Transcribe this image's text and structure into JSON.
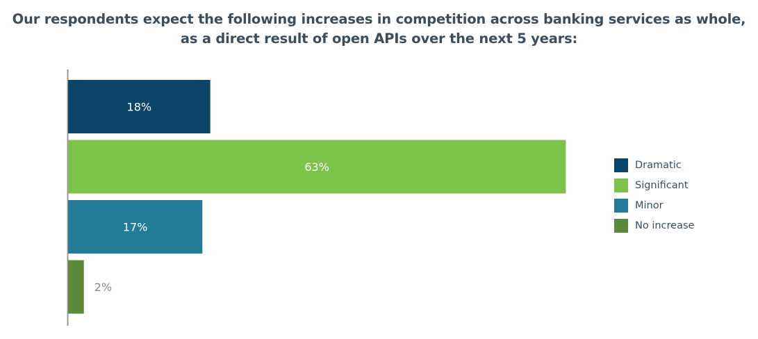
{
  "chart_data": {
    "type": "bar",
    "orientation": "horizontal",
    "title": [
      "Our respondents expect the following increases in competition across banking services as whole,",
      "as a direct result of open APIs over the next 5 years:"
    ],
    "categories": [
      "Dramatic",
      "Significant",
      "Minor",
      "No increase"
    ],
    "values": [
      18,
      63,
      17,
      2
    ],
    "labels": [
      "18%",
      "63%",
      "17%",
      "2%"
    ],
    "colors": [
      "#0b4567",
      "#7dc24b",
      "#237b97",
      "#5a8a3c"
    ],
    "xlim": [
      0,
      100
    ],
    "grid": false,
    "legend": "right"
  }
}
